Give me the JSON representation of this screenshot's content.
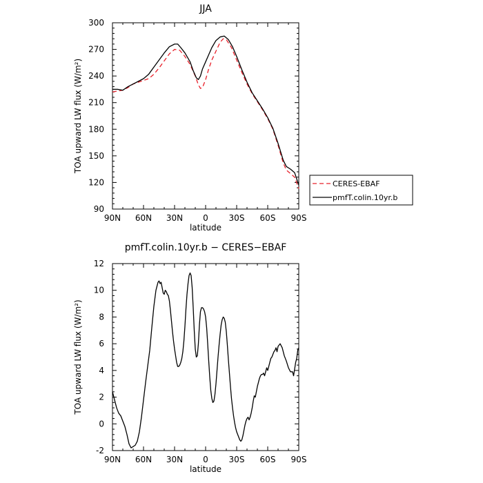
{
  "chart_data": [
    {
      "type": "line",
      "title": "JJA",
      "xlabel": "latitude",
      "ylabel": "TOA upward LW flux (W/m²)",
      "xlim": [
        90,
        -90
      ],
      "ylim": [
        90,
        300
      ],
      "xticks": [
        {
          "value": 90,
          "label": "90N"
        },
        {
          "value": 60,
          "label": "60N"
        },
        {
          "value": 30,
          "label": "30N"
        },
        {
          "value": 0,
          "label": "0"
        },
        {
          "value": -30,
          "label": "30S"
        },
        {
          "value": -60,
          "label": "60S"
        },
        {
          "value": -90,
          "label": "90S"
        }
      ],
      "yticks": [
        90,
        120,
        150,
        180,
        210,
        240,
        270,
        300
      ],
      "legend": "right",
      "series": [
        {
          "name": "CERES-EBAF",
          "color": "#e8202a",
          "style": "dashed",
          "points": [
            [
              90,
              222
            ],
            [
              85,
              223
            ],
            [
              80,
              224
            ],
            [
              75,
              227
            ],
            [
              70,
              231
            ],
            [
              65,
              233
            ],
            [
              60,
              235
            ],
            [
              55,
              237
            ],
            [
              50,
              242
            ],
            [
              45,
              249
            ],
            [
              40,
              257
            ],
            [
              35,
              265
            ],
            [
              30,
              270
            ],
            [
              25,
              269
            ],
            [
              20,
              262
            ],
            [
              15,
              253
            ],
            [
              10,
              240
            ],
            [
              7,
              230
            ],
            [
              5,
              226
            ],
            [
              3,
              227
            ],
            [
              0,
              236
            ],
            [
              -3,
              248
            ],
            [
              -6,
              258
            ],
            [
              -10,
              268
            ],
            [
              -14,
              278
            ],
            [
              -17,
              282
            ],
            [
              -20,
              281
            ],
            [
              -25,
              272
            ],
            [
              -30,
              258
            ],
            [
              -35,
              244
            ],
            [
              -40,
              231
            ],
            [
              -45,
              220
            ],
            [
              -50,
              211
            ],
            [
              -55,
              202
            ],
            [
              -60,
              192
            ],
            [
              -65,
              180
            ],
            [
              -70,
              162
            ],
            [
              -75,
              142
            ],
            [
              -78,
              134
            ],
            [
              -82,
              130
            ],
            [
              -86,
              126
            ],
            [
              -90,
              113
            ]
          ]
        },
        {
          "name": "pmfT.colin.10yr.b",
          "color": "#000000",
          "style": "solid",
          "points": [
            [
              90,
              225
            ],
            [
              85,
              225
            ],
            [
              80,
              224
            ],
            [
              75,
              228
            ],
            [
              70,
              231
            ],
            [
              65,
              234
            ],
            [
              60,
              237
            ],
            [
              55,
              242
            ],
            [
              50,
              250
            ],
            [
              45,
              258
            ],
            [
              40,
              266
            ],
            [
              35,
              273
            ],
            [
              30,
              276
            ],
            [
              27,
              276
            ],
            [
              24,
              272
            ],
            [
              20,
              266
            ],
            [
              15,
              256
            ],
            [
              12,
              246
            ],
            [
              9,
              238
            ],
            [
              7,
              236
            ],
            [
              5,
              240
            ],
            [
              3,
              248
            ],
            [
              0,
              256
            ],
            [
              -3,
              264
            ],
            [
              -6,
              272
            ],
            [
              -10,
              280
            ],
            [
              -14,
              284
            ],
            [
              -18,
              285
            ],
            [
              -22,
              281
            ],
            [
              -26,
              273
            ],
            [
              -30,
              262
            ],
            [
              -35,
              247
            ],
            [
              -40,
              233
            ],
            [
              -45,
              221
            ],
            [
              -50,
              212
            ],
            [
              -55,
              203
            ],
            [
              -60,
              193
            ],
            [
              -65,
              181
            ],
            [
              -70,
              164
            ],
            [
              -75,
              145
            ],
            [
              -78,
              138
            ],
            [
              -82,
              135
            ],
            [
              -86,
              131
            ],
            [
              -90,
              117
            ]
          ]
        }
      ]
    },
    {
      "type": "line",
      "title": "pmfT.colin.10yr.b − CERES−EBAF",
      "xlabel": "latitude",
      "ylabel": "TOA upward LW flux (W/m²)",
      "xlim": [
        90,
        -90
      ],
      "ylim": [
        -2,
        12
      ],
      "xticks": [
        {
          "value": 90,
          "label": "90N"
        },
        {
          "value": 60,
          "label": "60N"
        },
        {
          "value": 30,
          "label": "30N"
        },
        {
          "value": 0,
          "label": "0"
        },
        {
          "value": -30,
          "label": "30S"
        },
        {
          "value": -60,
          "label": "60S"
        },
        {
          "value": -90,
          "label": "90S"
        }
      ],
      "yticks": [
        -2,
        0,
        2,
        4,
        6,
        8,
        10,
        12
      ],
      "series": [
        {
          "color": "#000000",
          "style": "solid",
          "points": [
            [
              90,
              2.4
            ],
            [
              88,
              1.8
            ],
            [
              86,
              1.2
            ],
            [
              84,
              0.8
            ],
            [
              82,
              0.6
            ],
            [
              80,
              0.2
            ],
            [
              78,
              -0.2
            ],
            [
              76,
              -0.8
            ],
            [
              74,
              -1.5
            ],
            [
              72,
              -1.8
            ],
            [
              70,
              -1.7
            ],
            [
              68,
              -1.6
            ],
            [
              66,
              -1.3
            ],
            [
              64,
              -0.6
            ],
            [
              62,
              0.5
            ],
            [
              60,
              1.8
            ],
            [
              58,
              3.1
            ],
            [
              56,
              4.3
            ],
            [
              54,
              5.5
            ],
            [
              52,
              7.2
            ],
            [
              50,
              8.8
            ],
            [
              48,
              10.0
            ],
            [
              46,
              10.6
            ],
            [
              45,
              10.7
            ],
            [
              44,
              10.5
            ],
            [
              43,
              10.6
            ],
            [
              42,
              10.2
            ],
            [
              41,
              9.8
            ],
            [
              40,
              9.7
            ],
            [
              39,
              10.0
            ],
            [
              38,
              9.9
            ],
            [
              37,
              9.7
            ],
            [
              36,
              9.6
            ],
            [
              35,
              9.2
            ],
            [
              34,
              8.5
            ],
            [
              33,
              7.7
            ],
            [
              32,
              6.9
            ],
            [
              31,
              6.2
            ],
            [
              30,
              5.6
            ],
            [
              29,
              5.1
            ],
            [
              28,
              4.6
            ],
            [
              27,
              4.3
            ],
            [
              26,
              4.3
            ],
            [
              25,
              4.4
            ],
            [
              24,
              4.6
            ],
            [
              23,
              4.9
            ],
            [
              22,
              5.4
            ],
            [
              21,
              6.2
            ],
            [
              20,
              7.3
            ],
            [
              19,
              8.6
            ],
            [
              18,
              9.7
            ],
            [
              17,
              10.5
            ],
            [
              16,
              11.1
            ],
            [
              15,
              11.3
            ],
            [
              14,
              11.1
            ],
            [
              13,
              10.2
            ],
            [
              12,
              8.7
            ],
            [
              11,
              7.0
            ],
            [
              10,
              5.6
            ],
            [
              9,
              5.0
            ],
            [
              8,
              5.1
            ],
            [
              7,
              6.0
            ],
            [
              6,
              7.4
            ],
            [
              5,
              8.4
            ],
            [
              4,
              8.7
            ],
            [
              3,
              8.7
            ],
            [
              2,
              8.6
            ],
            [
              1,
              8.4
            ],
            [
              0,
              8.0
            ],
            [
              -1,
              7.2
            ],
            [
              -2,
              6.0
            ],
            [
              -3,
              4.7
            ],
            [
              -4,
              3.5
            ],
            [
              -5,
              2.5
            ],
            [
              -6,
              1.9
            ],
            [
              -7,
              1.6
            ],
            [
              -8,
              1.7
            ],
            [
              -9,
              2.2
            ],
            [
              -10,
              3.0
            ],
            [
              -11,
              4.0
            ],
            [
              -12,
              5.0
            ],
            [
              -13,
              5.9
            ],
            [
              -14,
              6.7
            ],
            [
              -15,
              7.4
            ],
            [
              -16,
              7.8
            ],
            [
              -17,
              8.0
            ],
            [
              -18,
              7.9
            ],
            [
              -19,
              7.6
            ],
            [
              -20,
              6.9
            ],
            [
              -21,
              5.9
            ],
            [
              -22,
              4.8
            ],
            [
              -23,
              3.8
            ],
            [
              -24,
              2.8
            ],
            [
              -25,
              1.9
            ],
            [
              -26,
              1.2
            ],
            [
              -27,
              0.6
            ],
            [
              -28,
              0.1
            ],
            [
              -29,
              -0.3
            ],
            [
              -30,
              -0.6
            ],
            [
              -31,
              -0.8
            ],
            [
              -32,
              -1.0
            ],
            [
              -33,
              -1.2
            ],
            [
              -34,
              -1.3
            ],
            [
              -35,
              -1.2
            ],
            [
              -36,
              -0.9
            ],
            [
              -37,
              -0.5
            ],
            [
              -38,
              -0.1
            ],
            [
              -39,
              0.2
            ],
            [
              -40,
              0.4
            ],
            [
              -41,
              0.5
            ],
            [
              -42,
              0.3
            ],
            [
              -43,
              0.5
            ],
            [
              -44,
              0.8
            ],
            [
              -45,
              1.2
            ],
            [
              -46,
              1.7
            ],
            [
              -47,
              2.1
            ],
            [
              -48,
              2.0
            ],
            [
              -49,
              2.4
            ],
            [
              -50,
              2.8
            ],
            [
              -51,
              3.1
            ],
            [
              -52,
              3.4
            ],
            [
              -53,
              3.6
            ],
            [
              -54,
              3.7
            ],
            [
              -55,
              3.7
            ],
            [
              -56,
              3.8
            ],
            [
              -57,
              3.6
            ],
            [
              -58,
              3.9
            ],
            [
              -59,
              4.2
            ],
            [
              -60,
              4.0
            ],
            [
              -61,
              4.3
            ],
            [
              -62,
              4.6
            ],
            [
              -63,
              4.9
            ],
            [
              -64,
              5.0
            ],
            [
              -65,
              5.2
            ],
            [
              -66,
              5.4
            ],
            [
              -67,
              5.5
            ],
            [
              -68,
              5.7
            ],
            [
              -69,
              5.4
            ],
            [
              -70,
              5.8
            ],
            [
              -72,
              6.0
            ],
            [
              -74,
              5.7
            ],
            [
              -76,
              5.1
            ],
            [
              -78,
              4.7
            ],
            [
              -80,
              4.2
            ],
            [
              -82,
              3.9
            ],
            [
              -84,
              3.9
            ],
            [
              -85,
              3.6
            ],
            [
              -86,
              4.1
            ],
            [
              -87,
              4.6
            ],
            [
              -88,
              4.9
            ],
            [
              -89,
              5.5
            ],
            [
              -90,
              5.7
            ]
          ]
        }
      ]
    }
  ]
}
